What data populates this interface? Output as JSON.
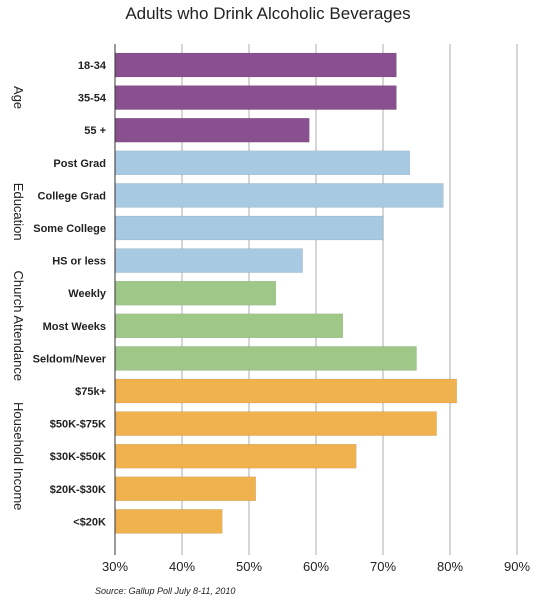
{
  "chart_data": {
    "type": "bar",
    "orientation": "horizontal",
    "title": "Adults who Drink Alcoholic Beverages",
    "source": "Source: Gallup Poll July 8-11, 2010",
    "xlim": [
      30,
      90
    ],
    "xticks": [
      "30%",
      "40%",
      "50%",
      "60%",
      "70%",
      "80%",
      "90%"
    ],
    "grid": "vertical",
    "groups": [
      {
        "name": "Age",
        "color": "#8a4f8f",
        "categories": [
          "18-34",
          "35-54",
          "55 +"
        ],
        "values": [
          72,
          72,
          59
        ]
      },
      {
        "name": "Education",
        "color": "#a7cae2",
        "categories": [
          "Post Grad",
          "College Grad",
          "Some College",
          "HS or less"
        ],
        "values": [
          74,
          79,
          70,
          58
        ]
      },
      {
        "name": "Church Attendance",
        "color": "#9fc888",
        "categories": [
          "Weekly",
          "Most Weeks",
          "Seldom/Never"
        ],
        "values": [
          54,
          64,
          75
        ]
      },
      {
        "name": "Household Income",
        "color": "#f0b14f",
        "categories": [
          "$75k+",
          "$50K-$75K",
          "$30K-$50K",
          "$20K-$30K",
          "<$20K"
        ],
        "values": [
          81,
          78,
          66,
          51,
          46
        ]
      }
    ]
  }
}
